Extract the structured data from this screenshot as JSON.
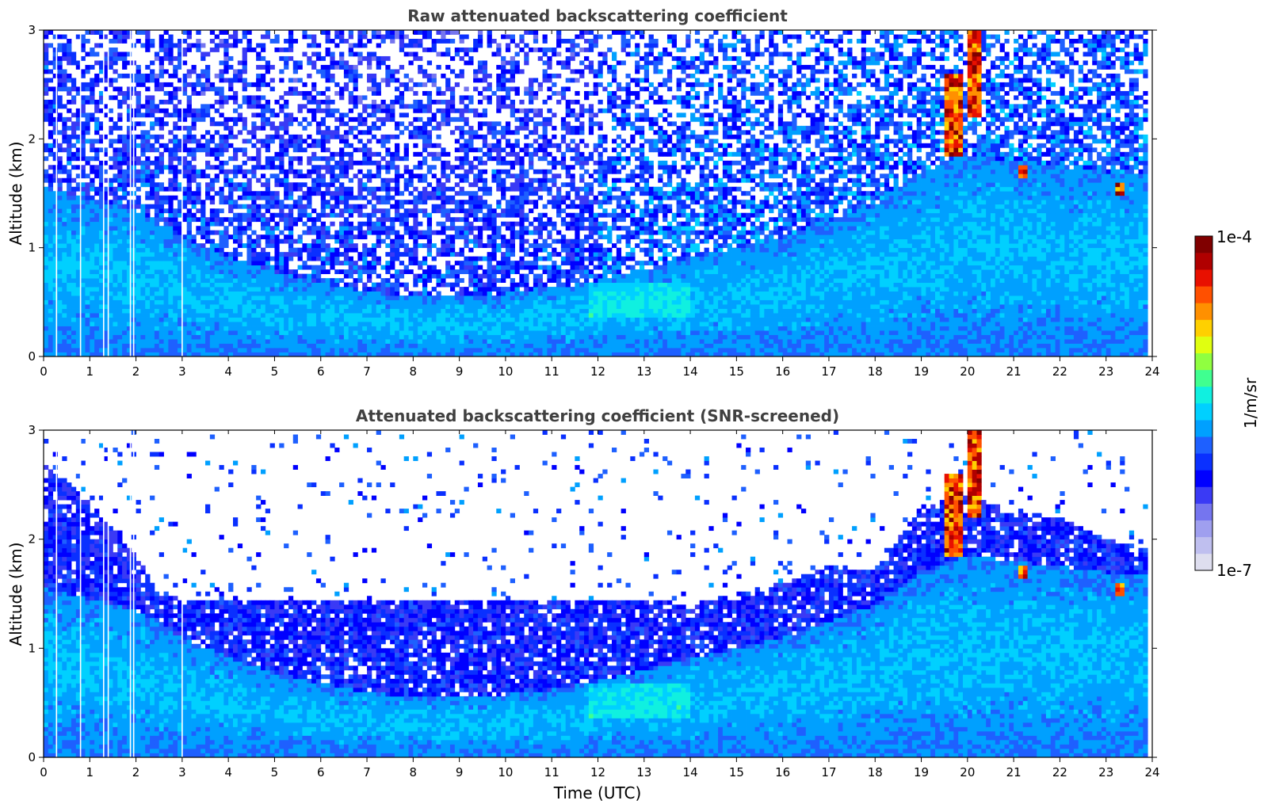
{
  "chart_data": [
    {
      "type": "heatmap",
      "title": "Raw attenuated backscattering coefficient",
      "xlabel": "",
      "ylabel": "Altitude (km)",
      "xlim": [
        0,
        24
      ],
      "ylim": [
        0,
        3
      ],
      "xticks": [
        "0",
        "1",
        "2",
        "3",
        "4",
        "5",
        "6",
        "7",
        "8",
        "9",
        "10",
        "11",
        "12",
        "13",
        "14",
        "15",
        "16",
        "17",
        "18",
        "19",
        "20",
        "21",
        "22",
        "23",
        "24"
      ],
      "yticks": [
        "0",
        "1",
        "2",
        "3"
      ],
      "screened": false,
      "data_gap_times": [
        0.28,
        0.8,
        1.3,
        1.4,
        1.88,
        1.95,
        3.0
      ],
      "aerosol_layer_top_km": [
        {
          "t": 0,
          "z": 1.55
        },
        {
          "t": 2,
          "z": 1.35
        },
        {
          "t": 3,
          "z": 1.1
        },
        {
          "t": 4,
          "z": 0.92
        },
        {
          "t": 5,
          "z": 0.78
        },
        {
          "t": 6,
          "z": 0.68
        },
        {
          "t": 7,
          "z": 0.6
        },
        {
          "t": 8,
          "z": 0.55
        },
        {
          "t": 9,
          "z": 0.55
        },
        {
          "t": 10,
          "z": 0.58
        },
        {
          "t": 11,
          "z": 0.62
        },
        {
          "t": 12,
          "z": 0.7
        },
        {
          "t": 13,
          "z": 0.8
        },
        {
          "t": 14,
          "z": 0.9
        },
        {
          "t": 15,
          "z": 1.0
        },
        {
          "t": 16,
          "z": 1.1
        },
        {
          "t": 17,
          "z": 1.25
        },
        {
          "t": 18,
          "z": 1.4
        },
        {
          "t": 19,
          "z": 1.7
        },
        {
          "t": 20,
          "z": 1.85
        },
        {
          "t": 21,
          "z": 1.8
        },
        {
          "t": 22,
          "z": 1.75
        },
        {
          "t": 23,
          "z": 1.7
        },
        {
          "t": 24,
          "z": 1.7
        }
      ],
      "cloud_features": [
        {
          "t_start": 19.5,
          "t_end": 19.9,
          "z_bottom": 1.85,
          "z_top": 2.6
        },
        {
          "t_start": 20.0,
          "t_end": 20.3,
          "z_bottom": 2.2,
          "z_top": 3.0
        },
        {
          "t_start": 21.1,
          "t_end": 21.3,
          "z_bottom": 1.65,
          "z_top": 1.75
        },
        {
          "t_start": 23.2,
          "t_end": 23.4,
          "z_bottom": 1.5,
          "z_top": 1.6
        }
      ]
    },
    {
      "type": "heatmap",
      "title": "Attenuated backscattering coefficient (SNR-screened)",
      "xlabel": "Time (UTC)",
      "ylabel": "Altitude (km)",
      "xlim": [
        0,
        24
      ],
      "ylim": [
        0,
        3
      ],
      "xticks": [
        "0",
        "1",
        "2",
        "3",
        "4",
        "5",
        "6",
        "7",
        "8",
        "9",
        "10",
        "11",
        "12",
        "13",
        "14",
        "15",
        "16",
        "17",
        "18",
        "19",
        "20",
        "21",
        "22",
        "23",
        "24"
      ],
      "yticks": [
        "0",
        "1",
        "2",
        "3"
      ],
      "screened": true,
      "data_gap_times": [
        0.28,
        0.8,
        1.3,
        1.4,
        1.88,
        1.95,
        3.0
      ],
      "screen_top_km": [
        {
          "t": 0,
          "z": 2.7
        },
        {
          "t": 1,
          "z": 2.35
        },
        {
          "t": 2,
          "z": 1.85
        },
        {
          "t": 2.5,
          "z": 1.5
        },
        {
          "t": 3,
          "z": 1.45
        },
        {
          "t": 4,
          "z": 1.45
        },
        {
          "t": 6,
          "z": 1.45
        },
        {
          "t": 8,
          "z": 1.45
        },
        {
          "t": 10,
          "z": 1.45
        },
        {
          "t": 12,
          "z": 1.45
        },
        {
          "t": 13,
          "z": 1.45
        },
        {
          "t": 14,
          "z": 1.4
        },
        {
          "t": 15,
          "z": 1.5
        },
        {
          "t": 16,
          "z": 1.6
        },
        {
          "t": 17,
          "z": 1.75
        },
        {
          "t": 18,
          "z": 1.7
        },
        {
          "t": 19,
          "z": 2.3
        },
        {
          "t": 20,
          "z": 2.4
        },
        {
          "t": 21,
          "z": 2.25
        },
        {
          "t": 22,
          "z": 2.2
        },
        {
          "t": 23,
          "z": 2.0
        },
        {
          "t": 24,
          "z": 1.9
        }
      ]
    }
  ],
  "colorbar": {
    "label": "1/m/sr",
    "max_label": "1e-4",
    "min_label": "1e-7",
    "scale": "log",
    "range": [
      1e-07,
      0.0001
    ],
    "colors": [
      "#dedeef",
      "#bfbfef",
      "#9f9fef",
      "#7575ef",
      "#3a3af5",
      "#0000ff",
      "#0a30ff",
      "#1e60ff",
      "#00a0ff",
      "#00d0ff",
      "#10f0e0",
      "#40ff90",
      "#90ff40",
      "#e0ff10",
      "#ffd000",
      "#ff9000",
      "#ff5000",
      "#e81000",
      "#b00000",
      "#800000"
    ]
  }
}
